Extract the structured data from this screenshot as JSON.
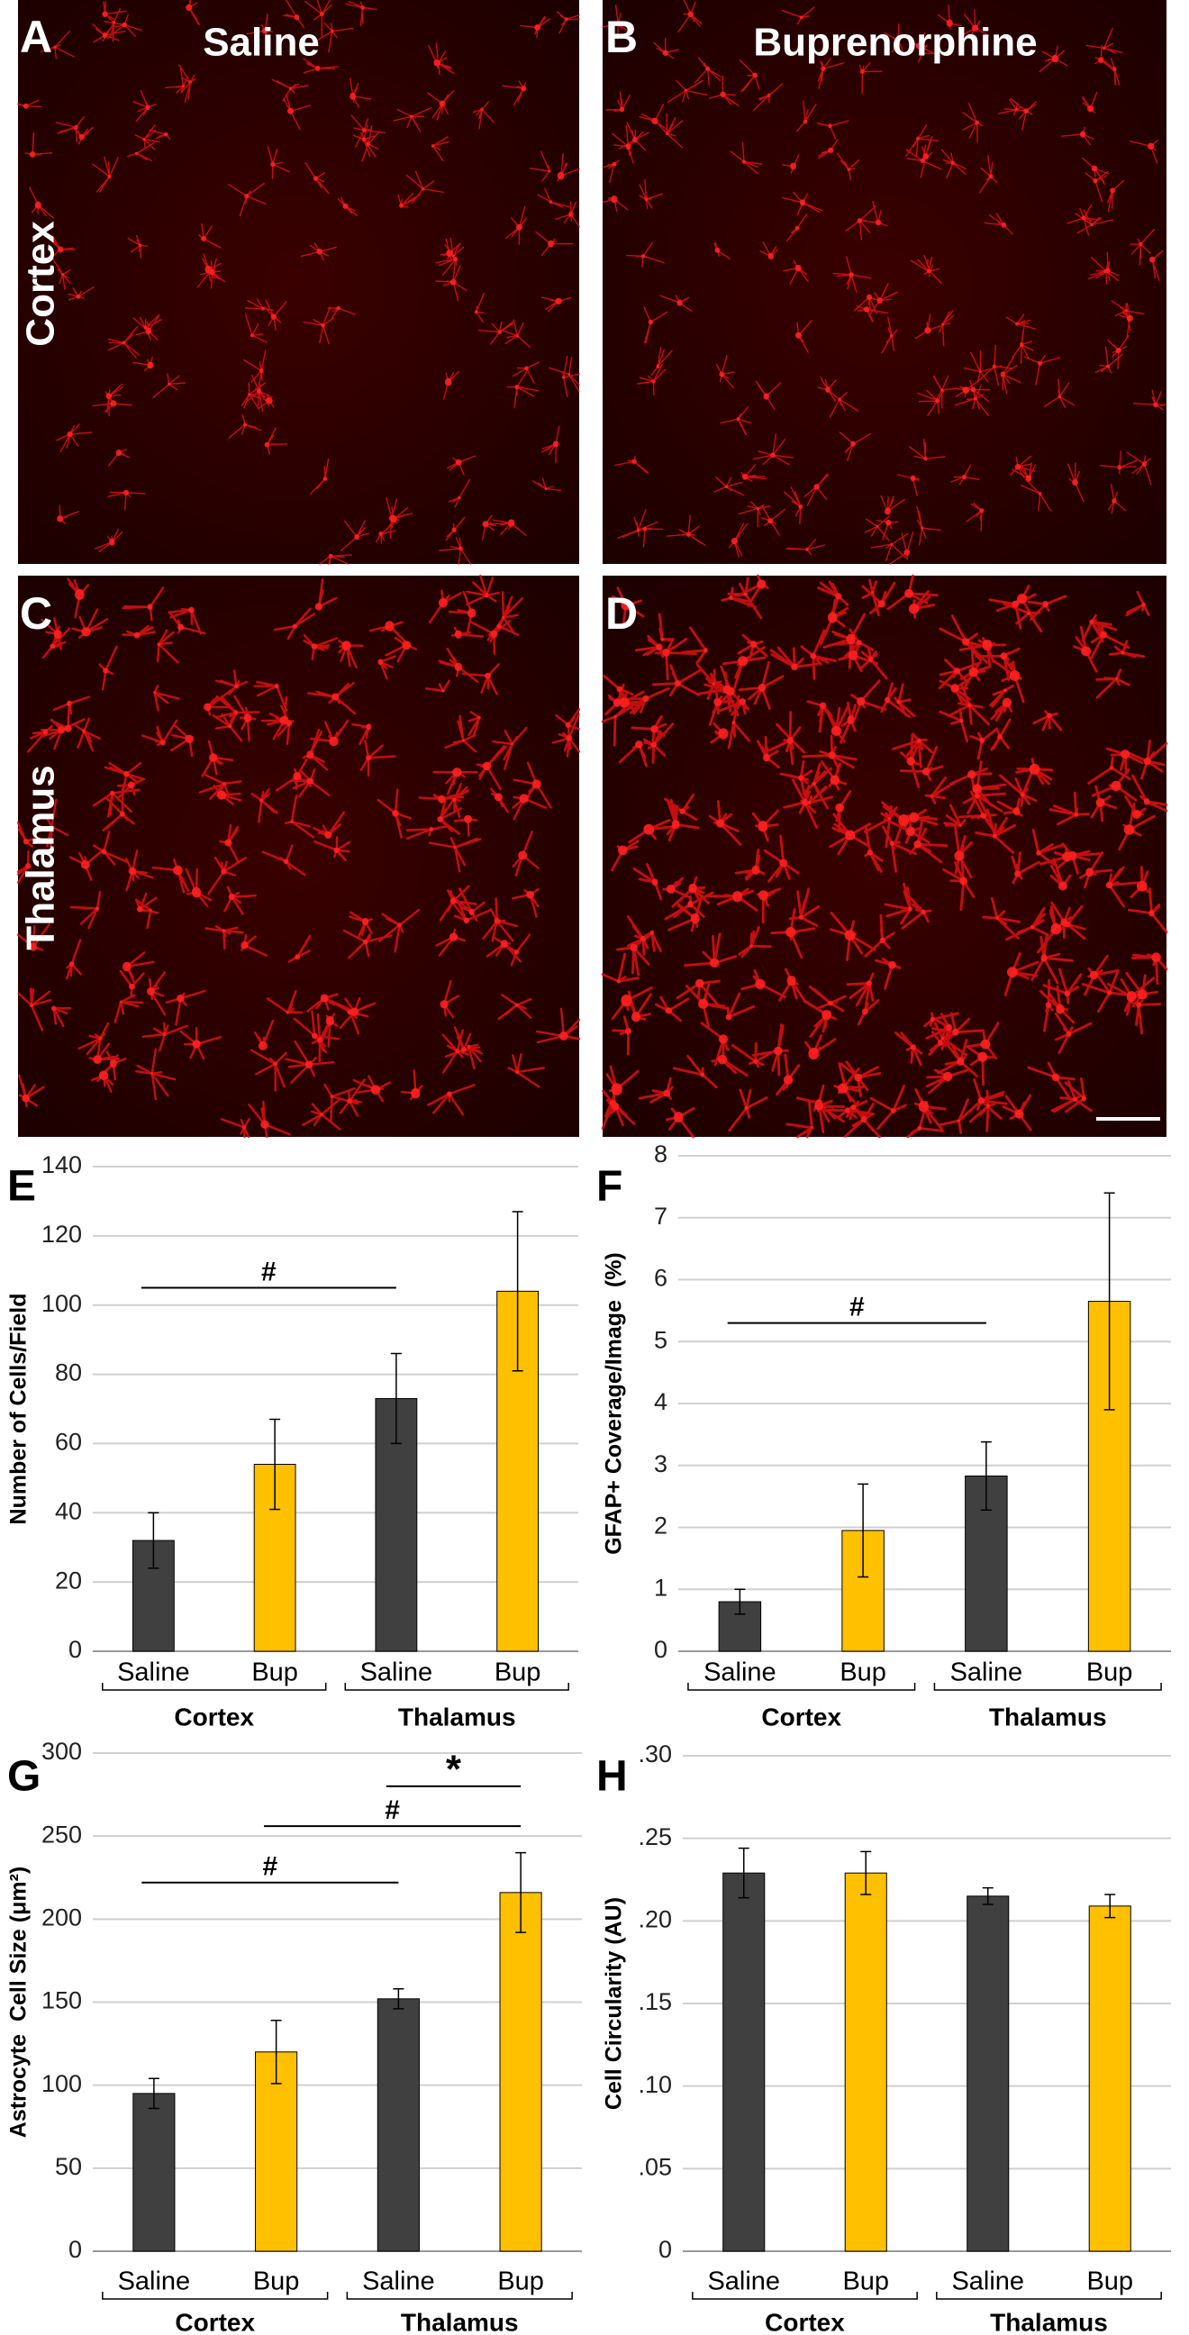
{
  "figure": {
    "panels": [
      {
        "letter": "A"
      },
      {
        "letter": "B"
      },
      {
        "letter": "C"
      },
      {
        "letter": "D"
      }
    ],
    "column_labels": [
      "Saline",
      "Buprenorphine"
    ],
    "row_labels": [
      "Cortex",
      "Thalamus"
    ]
  },
  "chart_data": [
    {
      "type": "bar",
      "panel": "E",
      "ylabel": "Number of Cells/Field",
      "categories": [
        "Saline",
        "Bup",
        "Saline",
        "Bup"
      ],
      "group_labels": [
        "Cortex",
        "Thalamus"
      ],
      "values": [
        32,
        54,
        73,
        104
      ],
      "errors": [
        8,
        13,
        13,
        23
      ],
      "colors": [
        "#404040",
        "#ffc000",
        "#404040",
        "#ffc000"
      ],
      "ylim": [
        0,
        140
      ],
      "yticks": [
        0,
        20,
        40,
        60,
        80,
        100,
        120,
        140
      ],
      "grid": true,
      "annotations": [
        {
          "text": "#",
          "y": 105,
          "from": 0,
          "to": 2
        }
      ]
    },
    {
      "type": "bar",
      "panel": "F",
      "ylabel": "GFAP+ Coverage/Image  (%)",
      "categories": [
        "Saline",
        "Bup",
        "Saline",
        "Bup"
      ],
      "group_labels": [
        "Cortex",
        "Thalamus"
      ],
      "values": [
        0.8,
        1.95,
        2.83,
        5.65
      ],
      "errors": [
        0.2,
        0.75,
        0.55,
        1.75
      ],
      "colors": [
        "#404040",
        "#ffc000",
        "#404040",
        "#ffc000"
      ],
      "ylim": [
        0,
        8
      ],
      "yticks": [
        0,
        1,
        2,
        3,
        4,
        5,
        6,
        7,
        8
      ],
      "grid": true,
      "annotations": [
        {
          "text": "#",
          "y": 5.3,
          "from": 0,
          "to": 2
        }
      ]
    },
    {
      "type": "bar",
      "panel": "G",
      "ylabel": "Astrocyte  Cell Size (μm²)",
      "categories": [
        "Saline",
        "Bup",
        "Saline",
        "Bup"
      ],
      "group_labels": [
        "Cortex",
        "Thalamus"
      ],
      "values": [
        95,
        120,
        152,
        216
      ],
      "errors": [
        9,
        19,
        6,
        24
      ],
      "colors": [
        "#404040",
        "#ffc000",
        "#404040",
        "#ffc000"
      ],
      "ylim": [
        0,
        300
      ],
      "yticks": [
        0,
        50,
        100,
        150,
        200,
        250,
        300
      ],
      "grid": true,
      "annotations": [
        {
          "text": "#",
          "y": 222,
          "from": 0,
          "to": 2
        },
        {
          "text": "#",
          "y": 256,
          "from": 1,
          "to": 3
        },
        {
          "text": "*",
          "y": 280,
          "from": 2,
          "to": 3
        }
      ]
    },
    {
      "type": "bar",
      "panel": "H",
      "ylabel": "Cell Circularity (AU)",
      "categories": [
        "Saline",
        "Bup",
        "Saline",
        "Bup"
      ],
      "group_labels": [
        "Cortex",
        "Thalamus"
      ],
      "values": [
        0.229,
        0.229,
        0.215,
        0.209
      ],
      "errors": [
        0.015,
        0.013,
        0.005,
        0.007
      ],
      "colors": [
        "#404040",
        "#ffc000",
        "#404040",
        "#ffc000"
      ],
      "ylim": [
        0,
        0.3
      ],
      "yticks": [
        0,
        {
          "value": 0.05,
          "label": ".05"
        },
        {
          "value": 0.1,
          "label": ".10"
        },
        {
          "value": 0.15,
          "label": ".15"
        },
        {
          "value": 0.2,
          "label": ".20"
        },
        {
          "value": 0.25,
          "label": ".25"
        },
        {
          "value": 0.3,
          "label": ".30"
        }
      ],
      "grid": true,
      "annotations": []
    }
  ]
}
